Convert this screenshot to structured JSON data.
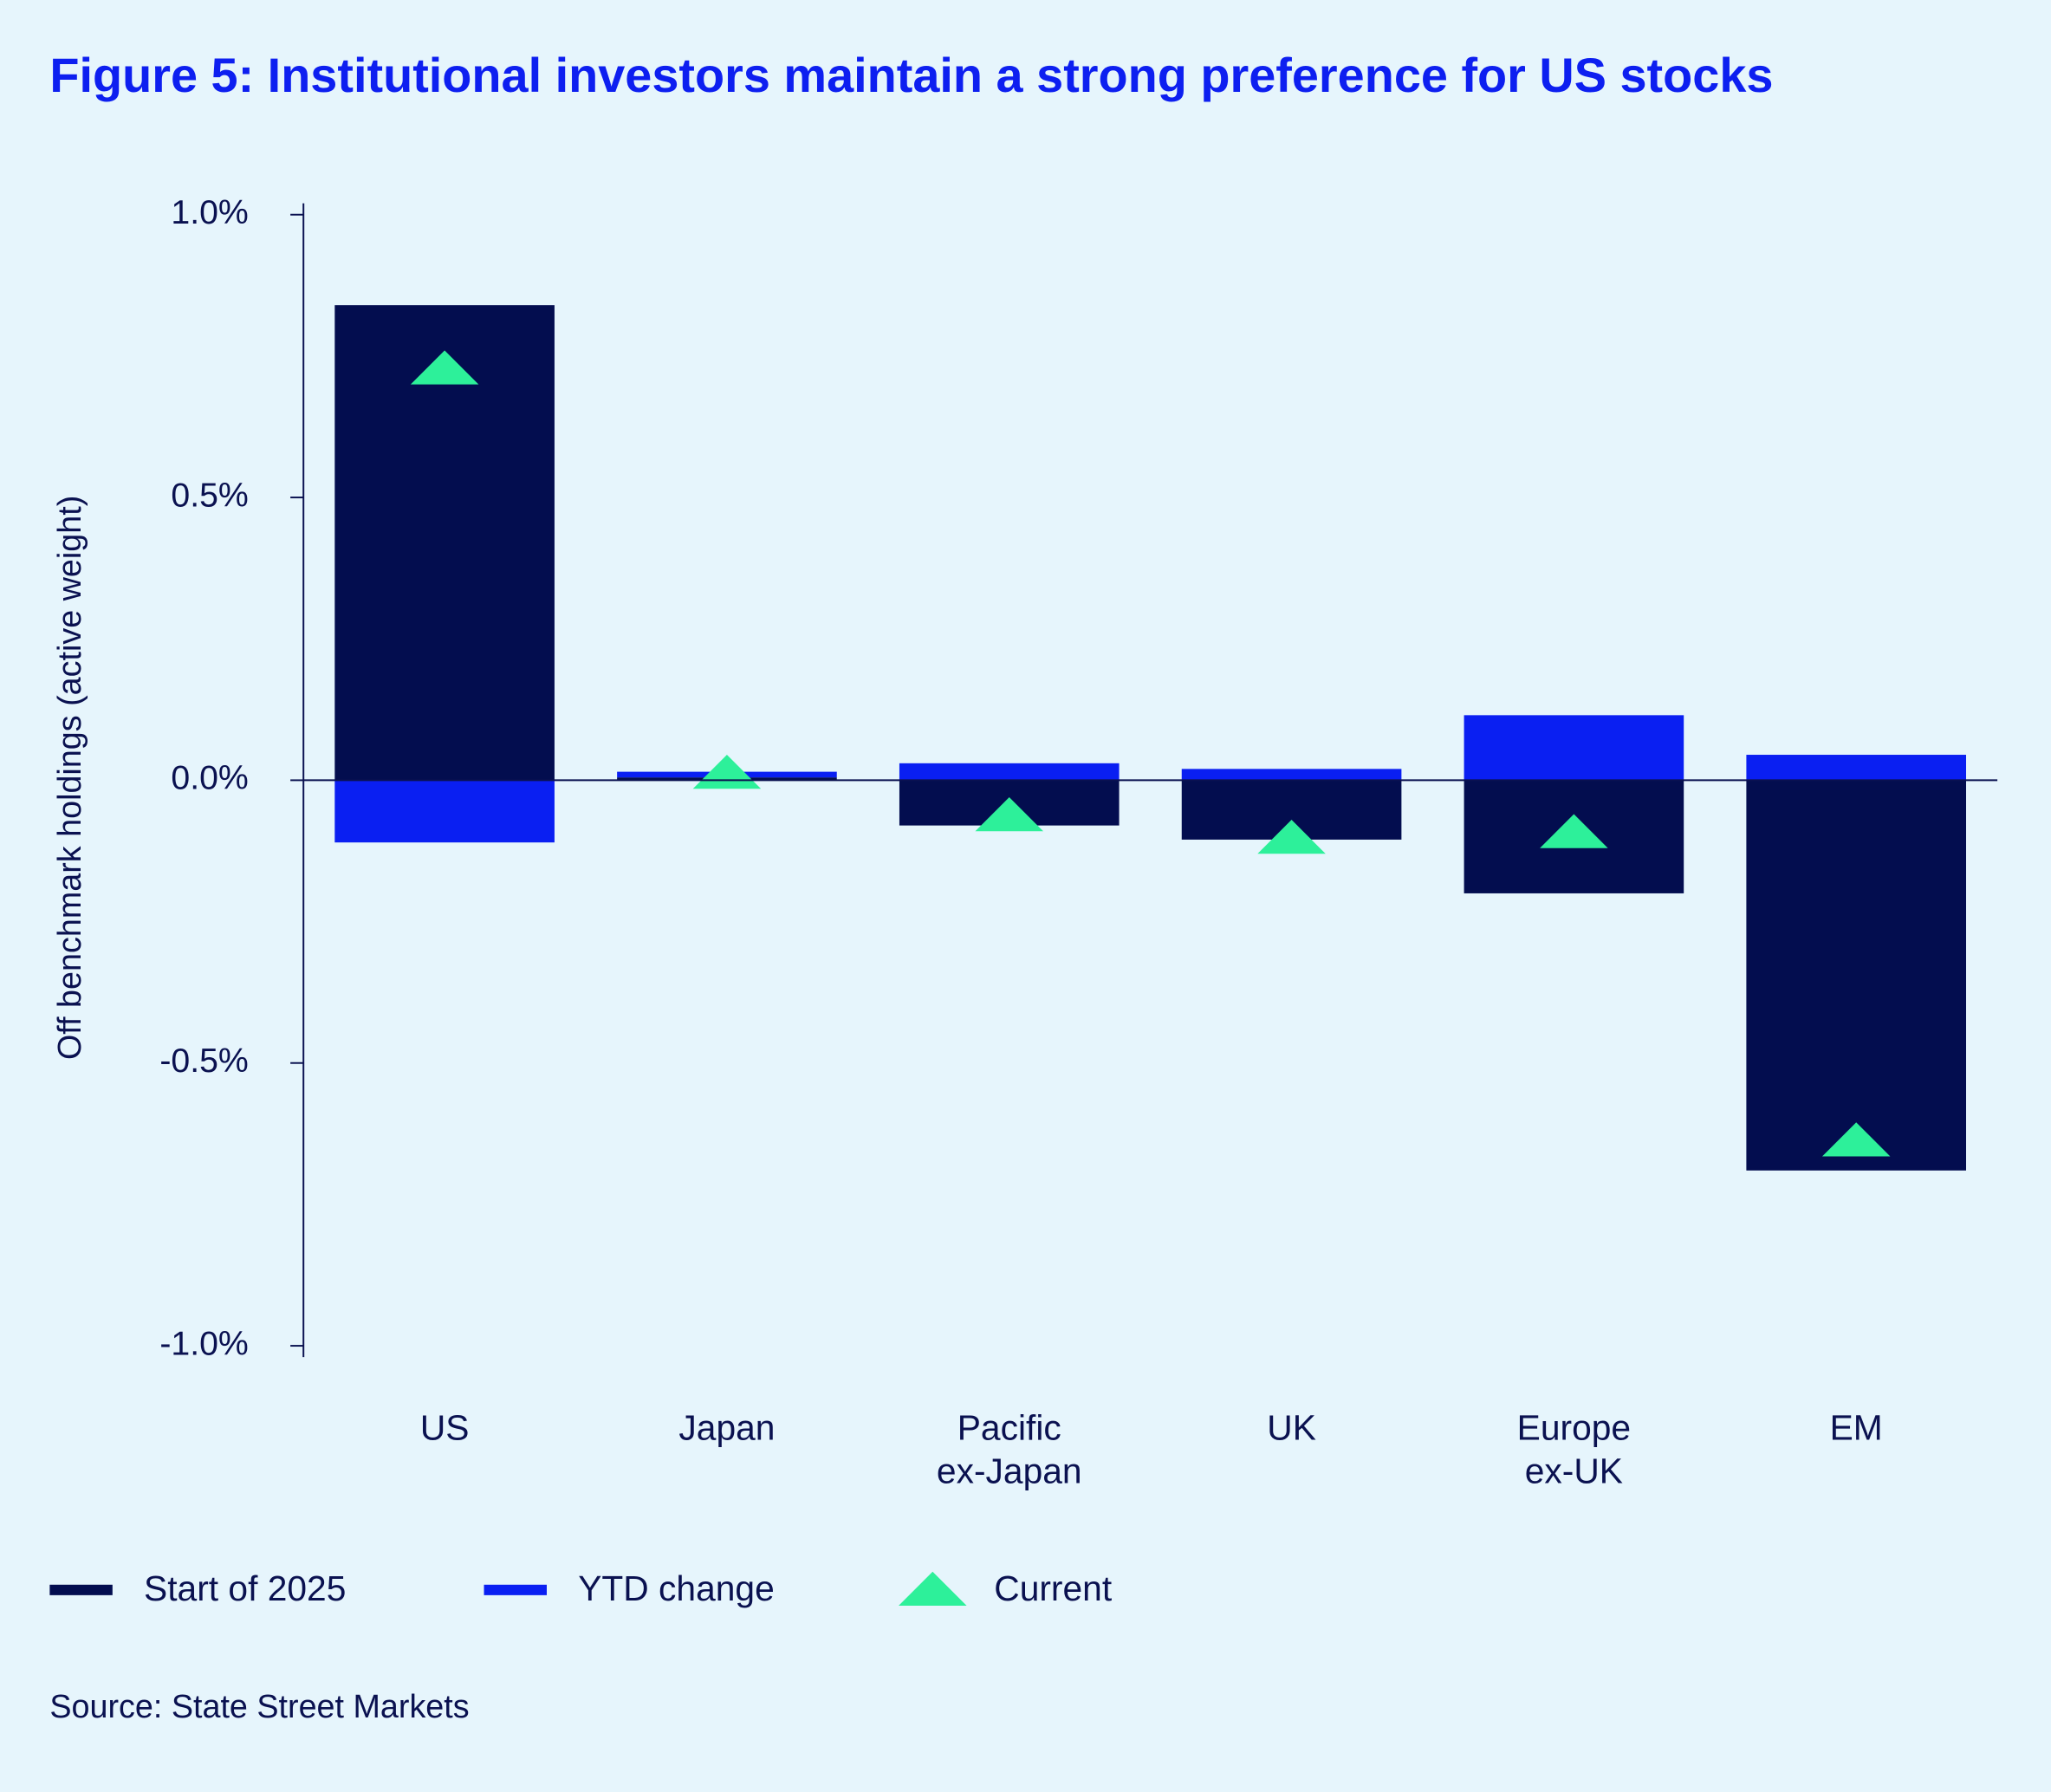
{
  "chart_data": {
    "type": "bar",
    "stacked": true,
    "title": "Figure 5: Institutional investors maintain a strong preference for US stocks",
    "y_label": "Off benchmark holdings (active weight)",
    "source": "Source: State Street Markets",
    "categories": [
      "US",
      "Japan",
      "Pacific\nex-Japan",
      "UK",
      "Europe\nex-UK",
      "EM"
    ],
    "series": [
      {
        "name": "Start of 2025",
        "color": "#030d4f",
        "values": [
          0.84,
          0.005,
          -0.08,
          -0.105,
          -0.2,
          -0.69
        ]
      },
      {
        "name": "YTD change",
        "color": "#0a1ff2",
        "values": [
          -0.11,
          0.01,
          0.03,
          0.02,
          0.115,
          0.045
        ]
      }
    ],
    "markers": {
      "name": "Current",
      "color": "#2df09a",
      "values": [
        0.73,
        0.015,
        -0.06,
        -0.1,
        -0.09,
        -0.635
      ]
    },
    "ylim": [
      -1.02,
      1.02
    ],
    "yticks": [
      {
        "value": -1,
        "label": "-1.0%"
      },
      {
        "value": -0.5,
        "label": "-0.5%"
      },
      {
        "value": 0,
        "label": "0.0%"
      },
      {
        "value": 0.5,
        "label": "0.5%"
      },
      {
        "value": 1,
        "label": "1.0%"
      }
    ],
    "grid": false
  }
}
